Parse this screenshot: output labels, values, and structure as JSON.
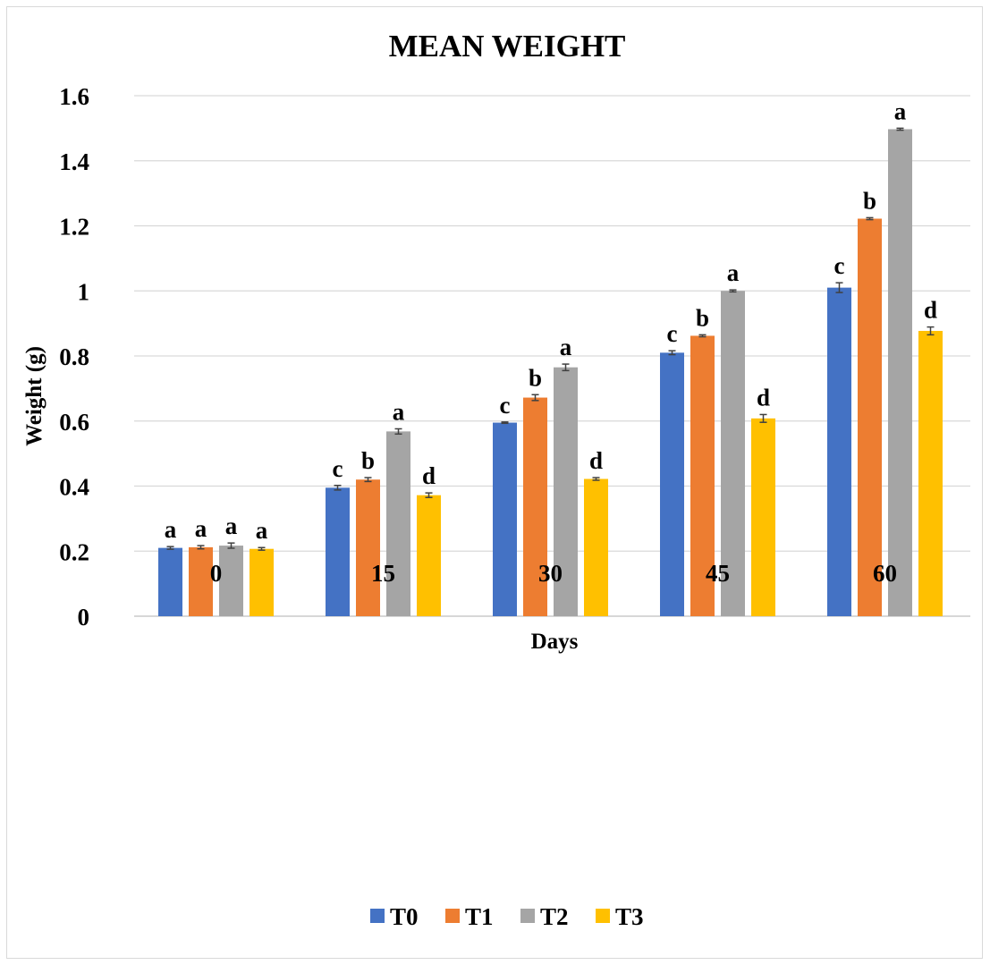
{
  "chart_data": {
    "type": "bar",
    "title": "MEAN WEIGHT",
    "xlabel": "Days",
    "ylabel": "Weight (g)",
    "categories": [
      "0",
      "15",
      "30",
      "45",
      "60"
    ],
    "ylim": [
      0,
      1.6
    ],
    "yticks": [
      0,
      0.2,
      0.4,
      0.6,
      0.8,
      1,
      1.2,
      1.4,
      1.6
    ],
    "ytick_labels": [
      "0",
      "0.2",
      "0.4",
      "0.6",
      "0.8",
      "1",
      "1.2",
      "1.4",
      "1.6"
    ],
    "grid": true,
    "legend_position": "bottom",
    "series": [
      {
        "name": "T0",
        "color": "#4472C4",
        "values": [
          0.21,
          0.395,
          0.595,
          0.81,
          1.01
        ],
        "errors": [
          0.004,
          0.007,
          0.002,
          0.006,
          0.015
        ],
        "labels": [
          "a",
          "c",
          "c",
          "c",
          "c"
        ]
      },
      {
        "name": "T1",
        "color": "#ED7D31",
        "values": [
          0.212,
          0.42,
          0.672,
          0.862,
          1.222
        ],
        "errors": [
          0.005,
          0.006,
          0.009,
          0.003,
          0.003
        ],
        "labels": [
          "a",
          "b",
          "b",
          "b",
          "b"
        ]
      },
      {
        "name": "T2",
        "color": "#A5A5A5",
        "values": [
          0.217,
          0.568,
          0.765,
          1.0,
          1.497
        ],
        "errors": [
          0.008,
          0.008,
          0.01,
          0.003,
          0.003
        ],
        "labels": [
          "a",
          "a",
          "a",
          "a",
          "a"
        ]
      },
      {
        "name": "T3",
        "color": "#FFC000",
        "values": [
          0.207,
          0.372,
          0.422,
          0.608,
          0.877
        ],
        "errors": [
          0.004,
          0.007,
          0.004,
          0.012,
          0.012
        ],
        "labels": [
          "a",
          "d",
          "d",
          "d",
          "d"
        ]
      }
    ]
  }
}
